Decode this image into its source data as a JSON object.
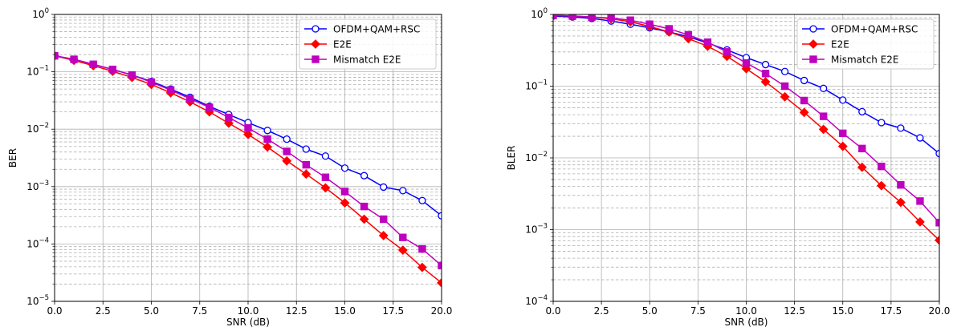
{
  "chart_data": [
    {
      "type": "line",
      "xlabel": "SNR (dB)",
      "ylabel": "BER",
      "xlim": [
        0,
        20
      ],
      "ylim": [
        1e-05,
        1
      ],
      "yscale": "log",
      "grid": true,
      "legend_position": "top-right",
      "x": [
        0,
        1,
        2,
        3,
        4,
        5,
        6,
        7,
        8,
        9,
        10,
        11,
        12,
        13,
        14,
        15,
        16,
        17,
        18,
        19,
        20
      ],
      "x_ticks": [
        "0.0",
        "2.5",
        "5.0",
        "7.5",
        "10.0",
        "12.5",
        "15.0",
        "17.5",
        "20.0"
      ],
      "y_ticks": [
        {
          "base": "10",
          "exp": "0"
        },
        {
          "base": "10",
          "exp": "−1"
        },
        {
          "base": "10",
          "exp": "−2"
        },
        {
          "base": "10",
          "exp": "−3"
        },
        {
          "base": "10",
          "exp": "−4"
        },
        {
          "base": "10",
          "exp": "−5"
        }
      ],
      "series": [
        {
          "name": "OFDM+QAM+RSC",
          "color": "#0000ff",
          "marker": "circle",
          "values": [
            0.19,
            0.165,
            0.135,
            0.11,
            0.088,
            0.068,
            0.05,
            0.036,
            0.025,
            0.018,
            0.013,
            0.0095,
            0.0067,
            0.0045,
            0.0034,
            0.0021,
            0.00155,
            0.00098,
            0.00085,
            0.00057,
            0.00031
          ]
        },
        {
          "name": "E2E",
          "color": "#ff0000",
          "marker": "diamond",
          "values": [
            0.19,
            0.158,
            0.128,
            0.102,
            0.08,
            0.06,
            0.043,
            0.03,
            0.02,
            0.0127,
            0.0081,
            0.0049,
            0.0028,
            0.00165,
            0.00095,
            0.00052,
            0.00027,
            0.00014,
            7.8e-05,
            3.9e-05,
            2.1e-05
          ]
        },
        {
          "name": "Mismatch E2E",
          "color": "#bf00bf",
          "marker": "square",
          "values": [
            0.19,
            0.165,
            0.135,
            0.11,
            0.088,
            0.066,
            0.048,
            0.034,
            0.024,
            0.016,
            0.0105,
            0.0067,
            0.0041,
            0.0024,
            0.00145,
            0.00082,
            0.00045,
            0.00027,
            0.00013,
            8.2e-05,
            4.2e-05
          ]
        }
      ]
    },
    {
      "type": "line",
      "xlabel": "SNR (dB)",
      "ylabel": "BLER",
      "xlim": [
        0,
        20
      ],
      "ylim": [
        0.0001,
        1
      ],
      "yscale": "log",
      "grid": true,
      "legend_position": "top-right",
      "x": [
        0,
        1,
        2,
        3,
        4,
        5,
        6,
        7,
        8,
        9,
        10,
        11,
        12,
        13,
        14,
        15,
        16,
        17,
        18,
        19,
        20
      ],
      "x_ticks": [
        "0.0",
        "2.5",
        "5.0",
        "7.5",
        "10.0",
        "12.5",
        "15.0",
        "17.5",
        "20.0"
      ],
      "y_ticks": [
        {
          "base": "10",
          "exp": "0"
        },
        {
          "base": "10",
          "exp": "−1"
        },
        {
          "base": "10",
          "exp": "−2"
        },
        {
          "base": "10",
          "exp": "−3"
        },
        {
          "base": "10",
          "exp": "−4"
        }
      ],
      "series": [
        {
          "name": "OFDM+QAM+RSC",
          "color": "#0000ff",
          "marker": "circle",
          "values": [
            0.95,
            0.92,
            0.88,
            0.81,
            0.73,
            0.65,
            0.57,
            0.49,
            0.4,
            0.32,
            0.25,
            0.2,
            0.16,
            0.12,
            0.093,
            0.064,
            0.044,
            0.031,
            0.026,
            0.019,
            0.0115
          ]
        },
        {
          "name": "E2E",
          "color": "#ff0000",
          "marker": "diamond",
          "values": [
            0.97,
            0.95,
            0.92,
            0.87,
            0.79,
            0.68,
            0.57,
            0.46,
            0.36,
            0.26,
            0.175,
            0.115,
            0.071,
            0.043,
            0.025,
            0.0145,
            0.0074,
            0.0041,
            0.0024,
            0.00128,
            0.00071
          ]
        },
        {
          "name": "Mismatch E2E",
          "color": "#bf00bf",
          "marker": "square",
          "values": [
            0.97,
            0.95,
            0.92,
            0.89,
            0.83,
            0.73,
            0.63,
            0.52,
            0.41,
            0.3,
            0.21,
            0.15,
            0.1,
            0.063,
            0.038,
            0.022,
            0.0135,
            0.0076,
            0.0042,
            0.0025,
            0.00125
          ]
        }
      ]
    }
  ]
}
